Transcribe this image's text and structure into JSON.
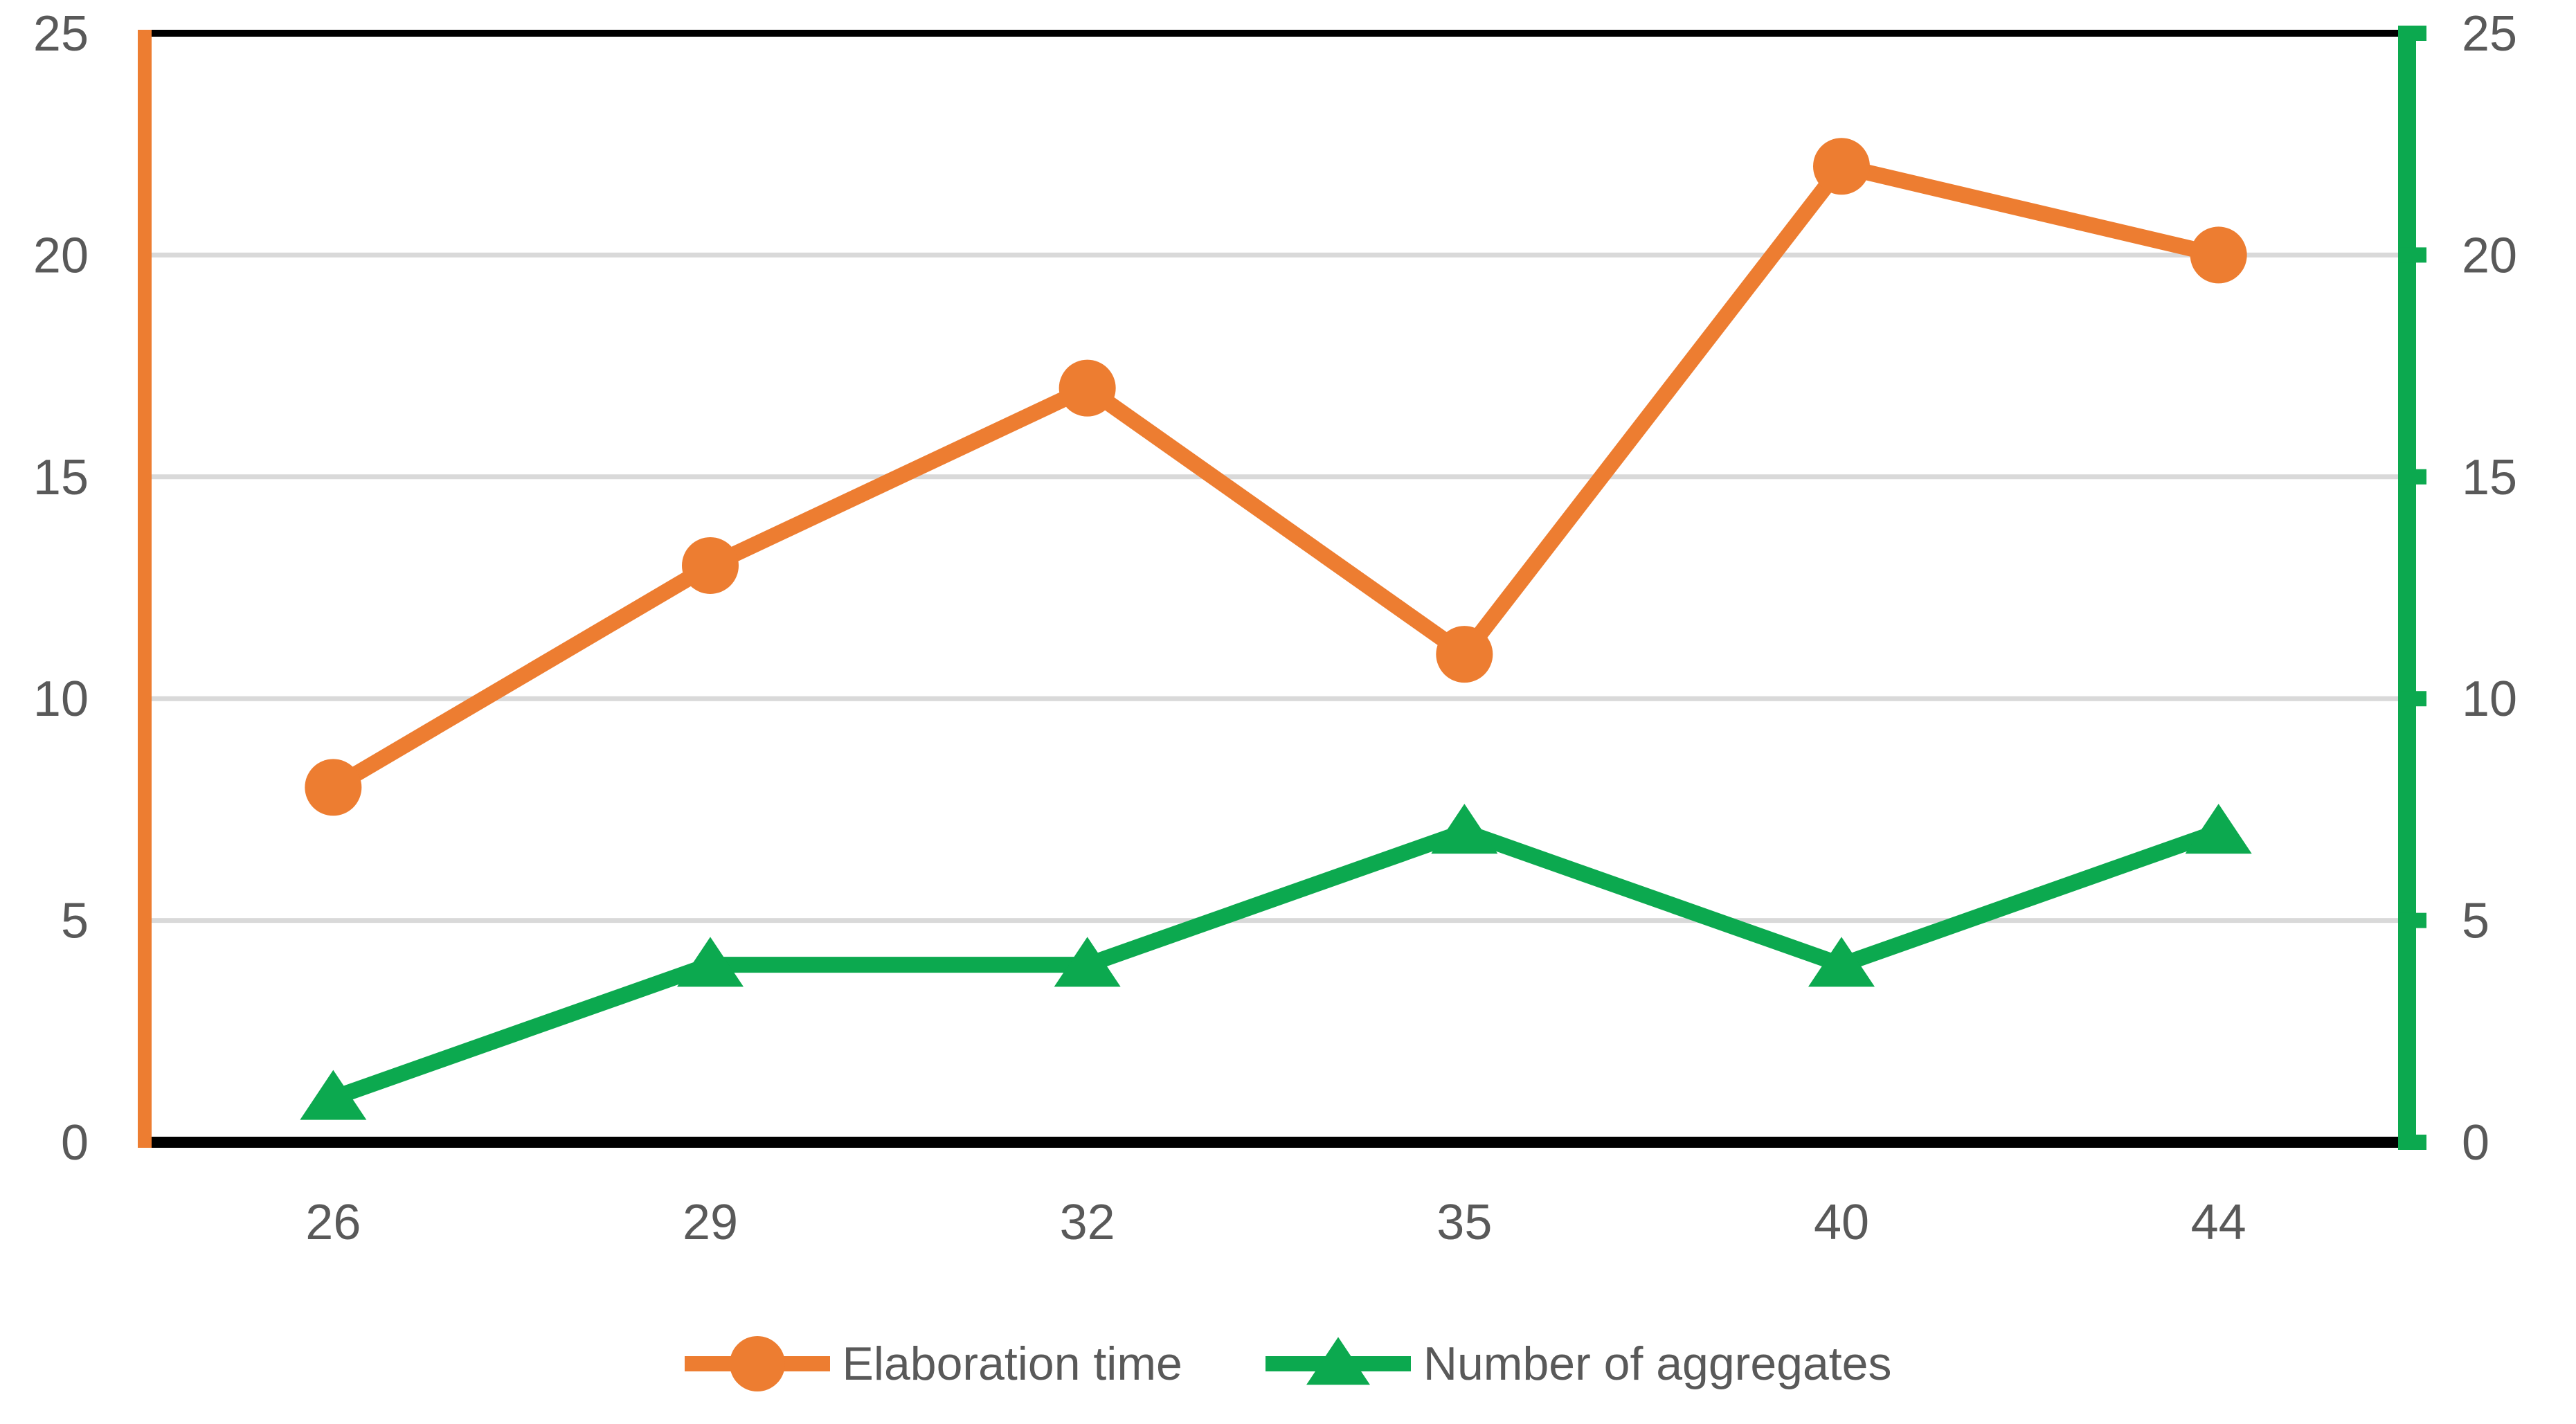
{
  "chart_data": {
    "type": "line",
    "title": "",
    "categories": [
      "26",
      "29",
      "32",
      "35",
      "40",
      "44"
    ],
    "series": [
      {
        "name": "Elaboration time",
        "values": [
          8,
          13,
          17,
          11,
          22,
          20
        ],
        "color": "#ED7D31",
        "marker": "circle",
        "axis": "left"
      },
      {
        "name": "Number of aggregates",
        "values": [
          1,
          4,
          4,
          7,
          4,
          7
        ],
        "color": "#0CA94F",
        "marker": "triangle",
        "axis": "right"
      }
    ],
    "left_axis": {
      "min": 0,
      "max": 25,
      "ticks": [
        0,
        5,
        10,
        15,
        20,
        25
      ],
      "color": "#ED7D31"
    },
    "right_axis": {
      "min": 0,
      "max": 25,
      "ticks": [
        0,
        5,
        10,
        15,
        20,
        25
      ],
      "color": "#0CA94F"
    },
    "grid": true,
    "legend_position": "bottom",
    "colors": {
      "grid": "#D9D9D9",
      "axis_text": "#595959",
      "frame": "#000000",
      "background": "#FFFFFF"
    }
  },
  "legend": {
    "items": [
      {
        "label": "Elaboration time"
      },
      {
        "label": "Number of aggregates"
      }
    ]
  }
}
